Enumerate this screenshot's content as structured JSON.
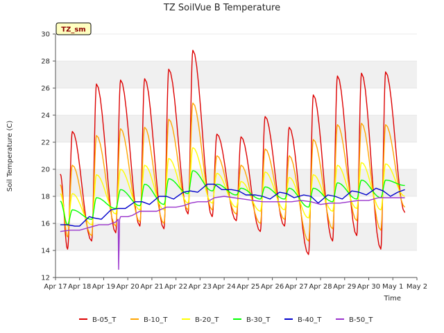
{
  "chart_data": {
    "type": "line",
    "title": "TZ SoilVue B Temperature",
    "xlabel": "Time",
    "ylabel": "Soil Temperature (C)",
    "ylim": [
      12,
      30
    ],
    "yticks": [
      12,
      14,
      16,
      18,
      20,
      22,
      24,
      26,
      28,
      30
    ],
    "xlim": [
      0,
      15
    ],
    "xtick_labels": [
      "Apr 17",
      "Apr 18",
      "Apr 19",
      "Apr 20",
      "Apr 21",
      "Apr 22",
      "Apr 23",
      "Apr 24",
      "Apr 25",
      "Apr 26",
      "Apr 27",
      "Apr 28",
      "Apr 29",
      "Apr 30",
      "May 1",
      "May 2"
    ],
    "grid": "horizontal bands",
    "annotation": "TZ_sm",
    "legend_position": "bottom",
    "series": [
      {
        "name": "B-05_T",
        "color": "#dd0000",
        "mins": [
          14.1,
          14.7,
          15.3,
          15.8,
          15.6,
          16.7,
          16.5,
          16.2,
          15.4,
          15.8,
          13.7,
          14.7,
          15.1,
          14.1,
          16.8
        ],
        "maxs": [
          22.8,
          26.3,
          26.6,
          26.7,
          27.4,
          28.8,
          22.6,
          22.4,
          23.9,
          23.1,
          25.5,
          26.9,
          27.1,
          27.2
        ]
      },
      {
        "name": "B-10_T",
        "color": "#ffa500",
        "mins": [
          15.0,
          15.1,
          15.8,
          16.1,
          16.0,
          17.0,
          17.0,
          16.7,
          16.0,
          16.3,
          14.7,
          15.6,
          16.2,
          15.5,
          17.2
        ],
        "maxs": [
          20.3,
          22.5,
          23.0,
          23.1,
          23.7,
          24.9,
          21.0,
          20.3,
          21.5,
          21.0,
          22.2,
          23.3,
          23.4,
          23.3
        ]
      },
      {
        "name": "B-20_T",
        "color": "#ffff00",
        "mins": [
          15.8,
          15.9,
          16.7,
          17.0,
          17.0,
          17.5,
          17.5,
          17.2,
          16.9,
          17.0,
          16.4,
          16.9,
          17.1,
          17.0,
          18.0
        ],
        "maxs": [
          18.2,
          19.6,
          20.0,
          20.3,
          20.8,
          21.6,
          19.7,
          19.1,
          19.8,
          19.4,
          19.6,
          20.3,
          20.5,
          20.4
        ]
      },
      {
        "name": "B-30_T",
        "color": "#00ff00",
        "mins": [
          15.9,
          16.3,
          17.1,
          17.3,
          17.4,
          18.2,
          18.4,
          18.1,
          17.8,
          17.8,
          17.2,
          17.6,
          17.8,
          17.9,
          18.8
        ],
        "maxs": [
          17.0,
          17.9,
          18.5,
          18.9,
          19.3,
          19.9,
          18.9,
          18.6,
          18.7,
          18.6,
          18.6,
          19.0,
          19.2,
          19.2
        ]
      },
      {
        "name": "B-40_T",
        "color": "#0000cc",
        "points": [
          [
            0.2,
            15.9
          ],
          [
            0.5,
            15.9
          ],
          [
            0.8,
            15.8
          ],
          [
            1.0,
            15.8
          ],
          [
            1.4,
            16.5
          ],
          [
            1.6,
            16.4
          ],
          [
            1.9,
            16.3
          ],
          [
            2.3,
            17.0
          ],
          [
            2.6,
            17.1
          ],
          [
            2.9,
            17.1
          ],
          [
            3.3,
            17.6
          ],
          [
            3.6,
            17.6
          ],
          [
            3.9,
            17.4
          ],
          [
            4.3,
            18.0
          ],
          [
            4.6,
            18.0
          ],
          [
            4.9,
            17.8
          ],
          [
            5.3,
            18.3
          ],
          [
            5.6,
            18.4
          ],
          [
            5.9,
            18.3
          ],
          [
            6.3,
            18.9
          ],
          [
            6.6,
            18.9
          ],
          [
            6.9,
            18.5
          ],
          [
            7.3,
            18.5
          ],
          [
            7.6,
            18.4
          ],
          [
            7.9,
            18.1
          ],
          [
            8.3,
            18.1
          ],
          [
            8.6,
            18.0
          ],
          [
            8.9,
            17.8
          ],
          [
            9.3,
            18.3
          ],
          [
            9.6,
            18.2
          ],
          [
            9.9,
            17.9
          ],
          [
            10.3,
            18.1
          ],
          [
            10.6,
            18.0
          ],
          [
            10.9,
            17.5
          ],
          [
            11.3,
            18.1
          ],
          [
            11.6,
            18.0
          ],
          [
            11.9,
            17.8
          ],
          [
            12.3,
            18.4
          ],
          [
            12.6,
            18.3
          ],
          [
            12.9,
            18.1
          ],
          [
            13.3,
            18.6
          ],
          [
            13.6,
            18.4
          ],
          [
            13.9,
            18.0
          ],
          [
            14.2,
            18.3
          ],
          [
            14.5,
            18.5
          ]
        ]
      },
      {
        "name": "B-50_T",
        "color": "#9933cc",
        "points": [
          [
            0.2,
            15.4
          ],
          [
            0.6,
            15.5
          ],
          [
            1.0,
            15.5
          ],
          [
            1.4,
            15.7
          ],
          [
            1.8,
            15.9
          ],
          [
            2.2,
            15.9
          ],
          [
            2.5,
            16.1
          ],
          [
            2.6,
            16.3
          ],
          [
            2.62,
            12.6
          ],
          [
            2.66,
            16.3
          ],
          [
            2.7,
            16.5
          ],
          [
            3.0,
            16.5
          ],
          [
            3.2,
            16.6
          ],
          [
            3.5,
            16.9
          ],
          [
            3.9,
            16.9
          ],
          [
            4.2,
            16.9
          ],
          [
            4.6,
            17.2
          ],
          [
            5.0,
            17.2
          ],
          [
            5.3,
            17.3
          ],
          [
            5.6,
            17.5
          ],
          [
            5.9,
            17.6
          ],
          [
            6.3,
            17.6
          ],
          [
            6.6,
            17.9
          ],
          [
            7.0,
            18.0
          ],
          [
            7.4,
            17.9
          ],
          [
            7.8,
            17.8
          ],
          [
            8.2,
            17.7
          ],
          [
            8.6,
            17.6
          ],
          [
            9.0,
            17.6
          ],
          [
            9.4,
            17.6
          ],
          [
            9.8,
            17.6
          ],
          [
            10.2,
            17.7
          ],
          [
            10.6,
            17.6
          ],
          [
            11.0,
            17.4
          ],
          [
            11.4,
            17.5
          ],
          [
            11.8,
            17.5
          ],
          [
            12.2,
            17.6
          ],
          [
            12.6,
            17.7
          ],
          [
            13.0,
            17.7
          ],
          [
            13.4,
            17.9
          ],
          [
            13.8,
            17.9
          ],
          [
            14.2,
            17.9
          ],
          [
            14.5,
            17.9
          ]
        ]
      }
    ]
  }
}
